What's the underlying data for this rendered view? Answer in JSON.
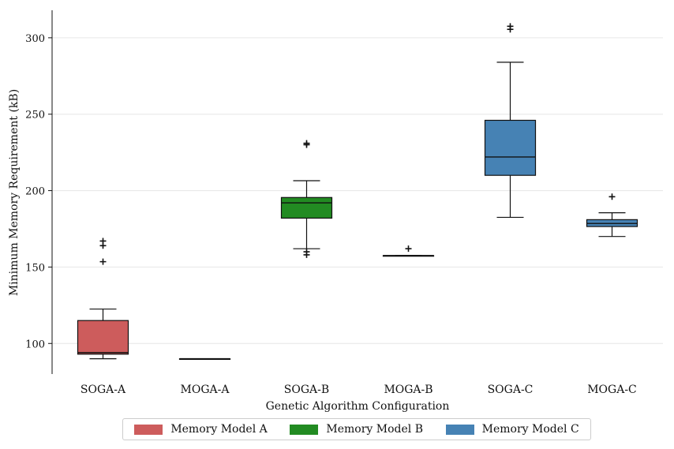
{
  "chart_data": {
    "type": "box",
    "title": "",
    "xlabel": "Genetic Algorithm Configuration",
    "ylabel": "Minimum Memory Requirement (kB)",
    "ylim": [
      80,
      318
    ],
    "yticks": [
      100,
      150,
      200,
      250,
      300
    ],
    "grid": "horizontal",
    "legend_position": "bottom",
    "categories": [
      "SOGA-A",
      "MOGA-A",
      "SOGA-B",
      "MOGA-B",
      "SOGA-C",
      "MOGA-C"
    ],
    "boxes": [
      {
        "category": "SOGA-A",
        "model": "Memory Model A",
        "whisker_low": 90,
        "q1": 93,
        "median": 94,
        "q3": 115,
        "whisker_high": 122.5,
        "outliers": [
          153.5,
          164,
          167
        ]
      },
      {
        "category": "MOGA-A",
        "model": "Memory Model A",
        "whisker_low": 90,
        "q1": 90,
        "median": 90,
        "q3": 90,
        "whisker_high": 90,
        "outliers": []
      },
      {
        "category": "SOGA-B",
        "model": "Memory Model B",
        "whisker_low": 162,
        "q1": 182,
        "median": 192,
        "q3": 195.5,
        "whisker_high": 206.5,
        "outliers": [
          158,
          160,
          230,
          231
        ]
      },
      {
        "category": "MOGA-B",
        "model": "Memory Model B",
        "whisker_low": 157.5,
        "q1": 157.5,
        "median": 157.5,
        "q3": 157.5,
        "whisker_high": 157.5,
        "outliers": [
          162
        ]
      },
      {
        "category": "SOGA-C",
        "model": "Memory Model C",
        "whisker_low": 182.5,
        "q1": 210,
        "median": 222,
        "q3": 246,
        "whisker_high": 284,
        "outliers": [
          305.5,
          307.5
        ]
      },
      {
        "category": "MOGA-C",
        "model": "Memory Model C",
        "whisker_low": 170,
        "q1": 176.5,
        "median": 178.5,
        "q3": 181,
        "whisker_high": 185.5,
        "outliers": [
          196
        ]
      }
    ],
    "legend": [
      {
        "label": "Memory Model A",
        "color": "#cd5c5c"
      },
      {
        "label": "Memory Model B",
        "color": "#228b22"
      },
      {
        "label": "Memory Model C",
        "color": "#4682b4"
      }
    ]
  }
}
